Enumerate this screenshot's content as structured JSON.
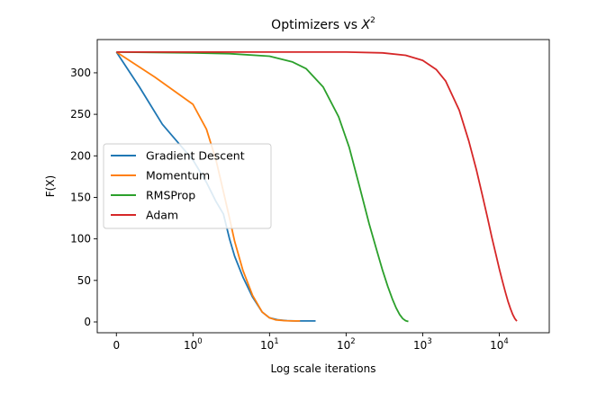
{
  "chart_data": {
    "type": "line",
    "title_prefix": "Optimizers vs ",
    "title_var": "X",
    "title_exp": "2",
    "xlabel": "Log scale iterations",
    "ylabel": "F(X)",
    "xscale": "symlog",
    "xlim": [
      -0.25,
      45000
    ],
    "ylim": [
      -13,
      340
    ],
    "yticks": [
      0,
      50,
      100,
      150,
      200,
      250,
      300
    ],
    "xticks": [
      {
        "value": 0,
        "base": "0",
        "exp": ""
      },
      {
        "value": 1,
        "base": "10",
        "exp": "0"
      },
      {
        "value": 10,
        "base": "10",
        "exp": "1"
      },
      {
        "value": 100,
        "base": "10",
        "exp": "2"
      },
      {
        "value": 1000,
        "base": "10",
        "exp": "3"
      },
      {
        "value": 10000,
        "base": "10",
        "exp": "4"
      }
    ],
    "legend_position": "center-left",
    "grid": false,
    "series": [
      {
        "name": "Gradient Descent",
        "color": "#1f77b4",
        "x": [
          0,
          0.3,
          0.6,
          1.0,
          1.5,
          2.0,
          2.5,
          3.0,
          3.5,
          4.5,
          6,
          8,
          10,
          13,
          17,
          22,
          30,
          40
        ],
        "y": [
          325,
          283,
          238,
          195,
          168,
          145,
          130,
          100,
          79,
          54,
          30,
          12,
          5,
          2.5,
          1.5,
          1.2,
          1.2,
          1.2
        ]
      },
      {
        "name": "Momentum",
        "color": "#ff7f0e",
        "x": [
          0,
          0.5,
          1.0,
          1.5,
          2.0,
          2.5,
          3.0,
          3.5,
          4.5,
          6,
          8,
          10,
          12,
          16,
          20,
          25
        ],
        "y": [
          325,
          295,
          262,
          232,
          195,
          157,
          125,
          97,
          62,
          32,
          12,
          5,
          2.5,
          1.5,
          1.2,
          1.2
        ]
      },
      {
        "name": "RMSProp",
        "color": "#2ca02c",
        "x": [
          0,
          1,
          3,
          10,
          20,
          30,
          50,
          80,
          110,
          150,
          200,
          250,
          300,
          350,
          400,
          450,
          500,
          550,
          600,
          650
        ],
        "y": [
          325,
          324,
          323,
          320,
          313,
          305,
          283,
          247,
          210,
          163,
          118,
          87,
          62,
          43,
          28,
          17,
          9,
          4,
          1.5,
          0.5
        ]
      },
      {
        "name": "Adam",
        "color": "#d62728",
        "x": [
          0,
          1,
          10,
          100,
          300,
          600,
          1000,
          1500,
          2000,
          3000,
          4000,
          5000,
          6000,
          7000,
          8000,
          9000,
          10000,
          11000,
          12000,
          13000,
          14000,
          15000,
          16000,
          17000
        ],
        "y": [
          325,
          325,
          325,
          325,
          324,
          321,
          315,
          304,
          290,
          255,
          218,
          184,
          153,
          126,
          102,
          82,
          64,
          49,
          36,
          25,
          16,
          9,
          4,
          1
        ]
      }
    ]
  }
}
